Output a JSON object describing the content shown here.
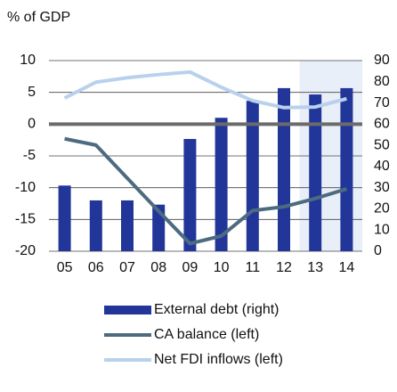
{
  "chart_data": {
    "type": "bar-line",
    "title": "% of GDP",
    "categories": [
      "05",
      "06",
      "07",
      "08",
      "09",
      "10",
      "11",
      "12",
      "13",
      "14"
    ],
    "series": [
      {
        "name": "External debt (right)",
        "type": "bar",
        "axis": "y2",
        "color": "#22369a",
        "values": [
          31,
          24,
          24,
          22,
          53,
          63,
          71,
          77,
          74,
          77
        ]
      },
      {
        "name": "CA balance (left)",
        "type": "line",
        "axis": "y",
        "color": "#4d6b80",
        "values": [
          -2.3,
          -3.3,
          -8.5,
          -13.7,
          -18.8,
          -17.6,
          -13.6,
          -13,
          -11.7,
          -10.2
        ]
      },
      {
        "name": "Net FDI inflows (left)",
        "type": "line",
        "axis": "y",
        "color": "#b9d1ec",
        "values": [
          4.1,
          6.6,
          7.3,
          7.8,
          8.2,
          5.8,
          3.7,
          2.6,
          2.7,
          4.0
        ]
      }
    ],
    "ylim": [
      -20,
      10
    ],
    "yticks": [
      -20,
      -15,
      -10,
      -5,
      0,
      5,
      10
    ],
    "y2lim": [
      0,
      90
    ],
    "y2ticks": [
      0,
      10,
      20,
      30,
      40,
      50,
      60,
      70,
      80,
      90
    ],
    "grid": true,
    "shaded_categories": [
      "13",
      "14"
    ],
    "shade_color": "#e9eff9"
  }
}
